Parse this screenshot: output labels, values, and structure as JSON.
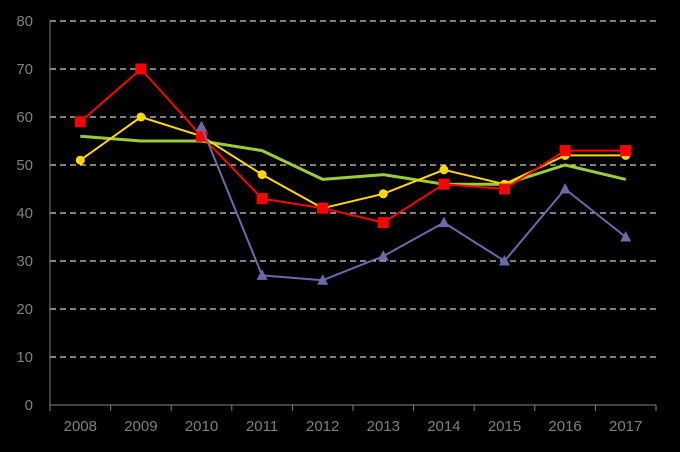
{
  "chart_data": {
    "type": "line",
    "title": "",
    "xlabel": "",
    "ylabel": "",
    "categories": [
      "2008",
      "2009",
      "2010",
      "2011",
      "2012",
      "2013",
      "2014",
      "2015",
      "2016",
      "2017"
    ],
    "ylim": [
      0,
      80
    ],
    "yticks": [
      0,
      10,
      20,
      30,
      40,
      50,
      60,
      70,
      80
    ],
    "grid": true,
    "series": [
      {
        "color": "#9acd32",
        "marker": "none",
        "values": [
          56,
          55,
          55,
          53,
          47,
          48,
          46,
          46,
          50,
          47
        ]
      },
      {
        "color": "#ffd700",
        "marker": "circle",
        "values": [
          51,
          60,
          56,
          48,
          41,
          44,
          49,
          46,
          52,
          52
        ]
      },
      {
        "color": "#ff0000",
        "marker": "square",
        "values": [
          59,
          70,
          56,
          43,
          41,
          38,
          46,
          45,
          53,
          53
        ]
      },
      {
        "color": "#6a6aa8",
        "marker": "triangle",
        "values": [
          null,
          null,
          58,
          27,
          26,
          31,
          38,
          30,
          45,
          35
        ]
      }
    ]
  }
}
